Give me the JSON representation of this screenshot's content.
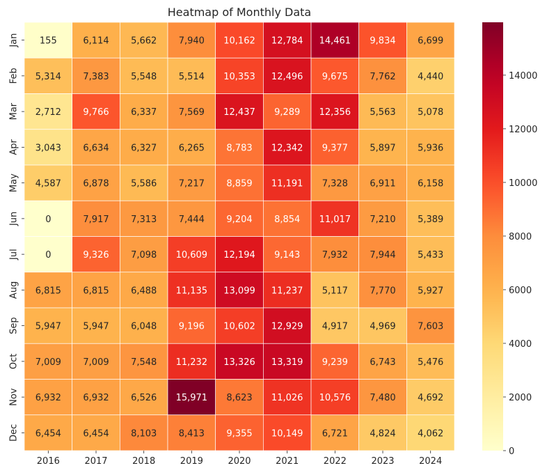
{
  "chart_data": {
    "type": "heatmap",
    "title": "Heatmap of Monthly Data",
    "xlabel": "",
    "ylabel": "",
    "x": [
      "2016",
      "2017",
      "2018",
      "2019",
      "2020",
      "2021",
      "2022",
      "2023",
      "2024"
    ],
    "y": [
      "Jan",
      "Feb",
      "Mar",
      "Apr",
      "May",
      "Jun",
      "Jul",
      "Aug",
      "Sep",
      "Oct",
      "Nov",
      "Dec"
    ],
    "values": [
      [
        155,
        6114,
        5662,
        7940,
        10162,
        12784,
        14461,
        9834,
        6699
      ],
      [
        5314,
        7383,
        5548,
        5514,
        10353,
        12496,
        9675,
        7762,
        4440
      ],
      [
        2712,
        9766,
        6337,
        7569,
        12437,
        9289,
        12356,
        5563,
        5078
      ],
      [
        3043,
        6634,
        6327,
        6265,
        8783,
        12342,
        9377,
        5897,
        5936
      ],
      [
        4587,
        6878,
        5586,
        7217,
        8859,
        11191,
        7328,
        6911,
        6158
      ],
      [
        0,
        7917,
        7313,
        7444,
        9204,
        8854,
        11017,
        7210,
        5389
      ],
      [
        0,
        9326,
        7098,
        10609,
        12194,
        9143,
        7932,
        7944,
        5433
      ],
      [
        6815,
        6815,
        6488,
        11135,
        13099,
        11237,
        5117,
        7770,
        5927
      ],
      [
        5947,
        5947,
        6048,
        9196,
        10602,
        12929,
        4917,
        4969,
        7603
      ],
      [
        7009,
        7009,
        7548,
        11232,
        13326,
        13319,
        9239,
        6743,
        5476
      ],
      [
        6932,
        6932,
        6526,
        15971,
        8623,
        11026,
        10576,
        7480,
        4692
      ],
      [
        6454,
        6454,
        8103,
        8413,
        9355,
        10149,
        6721,
        4824,
        4062
      ]
    ],
    "colormap": "YlOrRd",
    "value_range": [
      0,
      15971
    ],
    "colorbar_ticks": [
      0,
      2000,
      4000,
      6000,
      8000,
      10000,
      12000,
      14000
    ],
    "annotations": "values shown in cells with thousands separators",
    "grid": false,
    "legend": "colorbar at right"
  }
}
